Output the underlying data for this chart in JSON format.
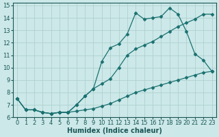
{
  "xlabel": "Humidex (Indice chaleur)",
  "bg_color": "#cce8e8",
  "grid_color": "#aacccc",
  "line_color": "#1a7070",
  "xlim": [
    -0.5,
    23.5
  ],
  "ylim": [
    6,
    15.2
  ],
  "xticks": [
    0,
    1,
    2,
    3,
    4,
    5,
    6,
    7,
    8,
    9,
    10,
    11,
    12,
    13,
    14,
    15,
    16,
    17,
    18,
    19,
    20,
    21,
    22,
    23
  ],
  "yticks": [
    6,
    7,
    8,
    9,
    10,
    11,
    12,
    13,
    14,
    15
  ],
  "line1_x": [
    0,
    1,
    2,
    3,
    4,
    5,
    6,
    7,
    8,
    9,
    10,
    11,
    12,
    13,
    14,
    15,
    16,
    17,
    18,
    19,
    20,
    21,
    22,
    23
  ],
  "line1_y": [
    7.5,
    6.6,
    6.6,
    6.4,
    6.3,
    6.4,
    6.4,
    6.5,
    6.6,
    6.7,
    6.9,
    7.1,
    7.4,
    7.7,
    8.0,
    8.2,
    8.4,
    8.6,
    8.8,
    9.0,
    9.2,
    9.4,
    9.6,
    9.7
  ],
  "line2_x": [
    0,
    1,
    2,
    3,
    4,
    5,
    6,
    7,
    8,
    9,
    10,
    11,
    12,
    13,
    14,
    15,
    16,
    17,
    18,
    19,
    20,
    21,
    22,
    23
  ],
  "line2_y": [
    7.5,
    6.6,
    6.6,
    6.4,
    6.3,
    6.4,
    6.4,
    7.0,
    7.7,
    8.3,
    10.5,
    11.6,
    11.9,
    12.7,
    14.4,
    13.9,
    14.0,
    14.1,
    14.8,
    14.3,
    12.9,
    11.1,
    10.6,
    9.7
  ],
  "line3_x": [
    0,
    1,
    2,
    3,
    4,
    5,
    6,
    7,
    8,
    9,
    10,
    11,
    12,
    13,
    14,
    15,
    16,
    17,
    18,
    19,
    20,
    21,
    22,
    23
  ],
  "line3_y": [
    7.5,
    6.6,
    6.6,
    6.4,
    6.3,
    6.4,
    6.4,
    7.0,
    7.7,
    8.3,
    8.7,
    9.1,
    10.0,
    11.0,
    11.5,
    11.8,
    12.1,
    12.5,
    12.9,
    13.3,
    13.6,
    13.9,
    14.3,
    14.3
  ],
  "axis_fontsize": 7,
  "tick_fontsize": 6,
  "marker_size": 2.5,
  "line_width": 0.9
}
